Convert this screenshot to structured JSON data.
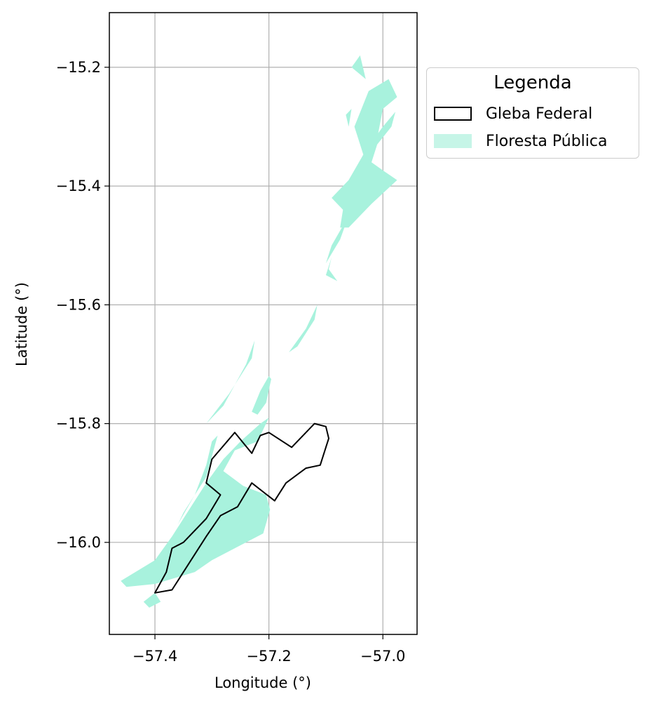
{
  "chart_data": {
    "type": "map",
    "xlabel": "Longitude (°)",
    "ylabel": "Latitude (°)",
    "xlim": [
      -57.48,
      -56.94
    ],
    "ylim": [
      -16.155,
      -15.108
    ],
    "xticks": [
      -57.4,
      -57.2,
      -57.0
    ],
    "yticks": [
      -15.2,
      -15.4,
      -15.6,
      -15.8,
      -16.0
    ],
    "xtick_labels": [
      "−57.4",
      "−57.2",
      "−57.0"
    ],
    "ytick_labels": [
      "−15.2",
      "−15.4",
      "−15.6",
      "−15.8",
      "−16.0"
    ],
    "grid": true,
    "legend": {
      "title": "Legenda",
      "placement": "outside-right-top",
      "entries": [
        {
          "label": "Gleba Federal",
          "style": "outline",
          "color": "#000000"
        },
        {
          "label": "Floresta Pública",
          "style": "fill",
          "color": "#c6f5e7"
        }
      ]
    },
    "colors": {
      "floresta_fill": "#a8f2dd",
      "gleba_edge": "#000000",
      "grid": "#b0b0b0"
    },
    "layers": [
      {
        "name": "Floresta Pública",
        "polygons": [
          [
            [
              -57.46,
              -16.065
            ],
            [
              -57.4,
              -16.03
            ],
            [
              -57.37,
              -15.99
            ],
            [
              -57.34,
              -15.945
            ],
            [
              -57.31,
              -15.9
            ],
            [
              -57.28,
              -15.86
            ],
            [
              -57.25,
              -15.83
            ],
            [
              -57.215,
              -15.8
            ],
            [
              -57.2,
              -15.79
            ],
            [
              -57.22,
              -15.83
            ],
            [
              -57.26,
              -15.845
            ],
            [
              -57.28,
              -15.88
            ],
            [
              -57.245,
              -15.905
            ],
            [
              -57.205,
              -15.92
            ],
            [
              -57.198,
              -15.945
            ],
            [
              -57.21,
              -15.985
            ],
            [
              -57.26,
              -16.01
            ],
            [
              -57.3,
              -16.03
            ],
            [
              -57.33,
              -16.05
            ],
            [
              -57.4,
              -16.07
            ],
            [
              -57.45,
              -16.075
            ]
          ],
          [
            [
              -57.39,
              -16.1
            ],
            [
              -57.41,
              -16.11
            ],
            [
              -57.42,
              -16.1
            ],
            [
              -57.4,
              -16.085
            ]
          ],
          [
            [
              -57.36,
              -15.97
            ],
            [
              -57.33,
              -15.92
            ],
            [
              -57.31,
              -15.87
            ],
            [
              -57.3,
              -15.83
            ],
            [
              -57.29,
              -15.82
            ],
            [
              -57.31,
              -15.89
            ],
            [
              -57.35,
              -15.95
            ]
          ],
          [
            [
              -57.31,
              -15.8
            ],
            [
              -57.27,
              -15.75
            ],
            [
              -57.23,
              -15.69
            ],
            [
              -57.225,
              -15.66
            ],
            [
              -57.24,
              -15.7
            ],
            [
              -57.28,
              -15.77
            ]
          ],
          [
            [
              -57.23,
              -15.78
            ],
            [
              -57.215,
              -15.745
            ],
            [
              -57.2,
              -15.72
            ],
            [
              -57.196,
              -15.725
            ],
            [
              -57.205,
              -15.765
            ],
            [
              -57.22,
              -15.785
            ]
          ],
          [
            [
              -57.165,
              -15.68
            ],
            [
              -57.135,
              -15.64
            ],
            [
              -57.115,
              -15.6
            ],
            [
              -57.12,
              -15.625
            ],
            [
              -57.15,
              -15.67
            ]
          ],
          [
            [
              -57.1,
              -15.53
            ],
            [
              -57.09,
              -15.5
            ],
            [
              -57.06,
              -15.45
            ],
            [
              -57.075,
              -15.49
            ]
          ],
          [
            [
              -57.09,
              -15.52
            ],
            [
              -57.1,
              -15.55
            ],
            [
              -57.08,
              -15.56
            ],
            [
              -57.095,
              -15.54
            ]
          ],
          [
            [
              -57.09,
              -15.42
            ],
            [
              -57.06,
              -15.39
            ],
            [
              -57.03,
              -15.34
            ],
            [
              -57.0,
              -15.3
            ],
            [
              -56.978,
              -15.275
            ],
            [
              -56.985,
              -15.3
            ],
            [
              -57.01,
              -15.33
            ],
            [
              -57.02,
              -15.36
            ],
            [
              -56.998,
              -15.375
            ],
            [
              -56.975,
              -15.39
            ],
            [
              -57.02,
              -15.43
            ],
            [
              -57.06,
              -15.47
            ],
            [
              -57.075,
              -15.47
            ],
            [
              -57.07,
              -15.44
            ]
          ],
          [
            [
              -57.03,
              -15.36
            ],
            [
              -57.05,
              -15.3
            ],
            [
              -57.025,
              -15.24
            ],
            [
              -56.99,
              -15.22
            ],
            [
              -56.975,
              -15.25
            ],
            [
              -57.0,
              -15.27
            ],
            [
              -57.01,
              -15.32
            ]
          ],
          [
            [
              -57.06,
              -15.3
            ],
            [
              -57.055,
              -15.27
            ],
            [
              -57.065,
              -15.28
            ]
          ],
          [
            [
              -57.055,
              -15.2
            ],
            [
              -57.04,
              -15.18
            ],
            [
              -57.03,
              -15.22
            ]
          ]
        ]
      },
      {
        "name": "Gleba Federal",
        "polygons": [
          [
            [
              -57.4,
              -16.085
            ],
            [
              -57.37,
              -16.08
            ],
            [
              -57.35,
              -16.05
            ],
            [
              -57.31,
              -15.99
            ],
            [
              -57.285,
              -15.955
            ],
            [
              -57.255,
              -15.94
            ],
            [
              -57.23,
              -15.9
            ],
            [
              -57.19,
              -15.93
            ],
            [
              -57.17,
              -15.9
            ],
            [
              -57.135,
              -15.875
            ],
            [
              -57.11,
              -15.87
            ],
            [
              -57.1,
              -15.84
            ],
            [
              -57.095,
              -15.825
            ],
            [
              -57.1,
              -15.805
            ],
            [
              -57.12,
              -15.8
            ],
            [
              -57.16,
              -15.84
            ],
            [
              -57.2,
              -15.815
            ],
            [
              -57.215,
              -15.82
            ],
            [
              -57.23,
              -15.85
            ],
            [
              -57.26,
              -15.815
            ],
            [
              -57.3,
              -15.86
            ],
            [
              -57.31,
              -15.9
            ],
            [
              -57.285,
              -15.92
            ],
            [
              -57.31,
              -15.96
            ],
            [
              -57.35,
              -16.0
            ],
            [
              -57.37,
              -16.01
            ],
            [
              -57.38,
              -16.05
            ]
          ]
        ]
      }
    ]
  }
}
